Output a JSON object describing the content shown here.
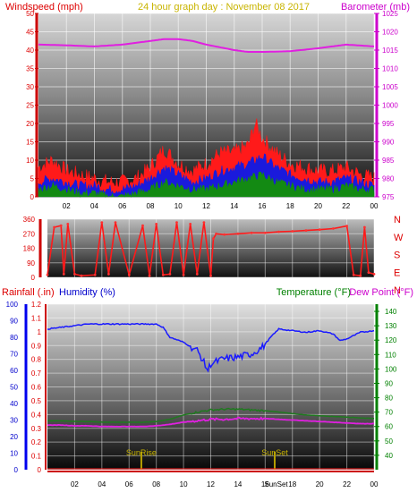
{
  "header": {
    "left": "Windspeed (mph)",
    "center": "24 hour graph day : November 08 2017",
    "right": "Barometer (mb)"
  },
  "colors": {
    "wind": "#ff1a1a",
    "gust": "#ff1a1a",
    "wind_avg": "#1a1adc",
    "wind_low": "#138a13",
    "barometer": "#e020e0",
    "humidity": "#1a1aff",
    "temperature": "#1f7a1f",
    "dewpoint": "#e020e0",
    "rain": "#ff1a1a",
    "sun": "#b6a000",
    "left_axis": "#dd0000",
    "right_axis": "#cc00cc",
    "hum_axis": "#0000cc",
    "temp_axis": "#008000",
    "grid": "#ffffff"
  },
  "chart_data": [
    {
      "type": "area",
      "id": "wind-barometer",
      "title": "24 hour graph day : November 08 2017",
      "ylabel_left": "Windspeed (mph)",
      "ylabel_right": "Barometer (mb)",
      "ylim_left": [
        0,
        50
      ],
      "ylim_right": [
        975,
        1025
      ],
      "yticks_left": [
        "0",
        "5",
        "10",
        "15",
        "20",
        "25",
        "30",
        "35",
        "40",
        "45",
        "50"
      ],
      "yticks_right": [
        "975",
        "980",
        "985",
        "990",
        "995",
        "1000",
        "1005",
        "1010",
        "1015",
        "1020",
        "1025"
      ],
      "xticks": [
        "02",
        "04",
        "06",
        "08",
        "10",
        "12",
        "14",
        "16",
        "18",
        "20",
        "22",
        "00"
      ],
      "xlim_hours": [
        0,
        24
      ],
      "grid": true,
      "series": [
        {
          "name": "",
          "kind": "gust",
          "x": [
            0,
            1,
            2,
            3,
            4,
            5,
            6,
            7,
            8,
            9,
            10,
            11,
            12,
            13,
            14,
            15,
            15.5,
            16,
            17,
            18,
            19,
            20,
            21,
            22,
            23,
            24
          ],
          "y": [
            8,
            10,
            7,
            6,
            5,
            4,
            4,
            5,
            8,
            13,
            9,
            7,
            9,
            12,
            12,
            14,
            20,
            16,
            12,
            9,
            8,
            7,
            7,
            8,
            6,
            5
          ]
        },
        {
          "name": "",
          "kind": "average",
          "x": [
            0,
            1,
            2,
            3,
            4,
            5,
            6,
            7,
            8,
            9,
            10,
            11,
            12,
            13,
            14,
            15,
            16,
            17,
            18,
            19,
            20,
            21,
            22,
            23,
            24
          ],
          "y": [
            4,
            5,
            4,
            3,
            3,
            2,
            2,
            3,
            5,
            8,
            6,
            4,
            5,
            7,
            8,
            9,
            11,
            8,
            6,
            5,
            4,
            4,
            5,
            4,
            3
          ]
        },
        {
          "name": "",
          "kind": "low",
          "x": [
            0,
            1,
            2,
            3,
            4,
            5,
            6,
            7,
            8,
            9,
            10,
            11,
            12,
            13,
            14,
            15,
            16,
            17,
            18,
            19,
            20,
            21,
            22,
            23,
            24
          ],
          "y": [
            2,
            3,
            2,
            1,
            1,
            0,
            0,
            1,
            2,
            4,
            3,
            2,
            2,
            3,
            4,
            5,
            6,
            4,
            3,
            2,
            2,
            2,
            3,
            2,
            2
          ]
        },
        {
          "name": "",
          "kind": "barometer",
          "axis": "right",
          "x": [
            0,
            2,
            4,
            6,
            8,
            9,
            10,
            11,
            12,
            14,
            15,
            16,
            18,
            20,
            22,
            24
          ],
          "y": [
            1016.5,
            1016.3,
            1016,
            1016.5,
            1017.5,
            1018,
            1018,
            1017.5,
            1016.5,
            1015,
            1014.5,
            1014.5,
            1014.7,
            1015.5,
            1016.5,
            1016
          ]
        }
      ]
    },
    {
      "type": "scatter",
      "id": "wind-direction",
      "ylim": [
        0,
        360
      ],
      "yticks": [
        "0",
        "90",
        "180",
        "270",
        "360"
      ],
      "compass_labels": [
        "N",
        "W",
        "S",
        "E",
        "N"
      ],
      "xlim_hours": [
        0,
        24
      ],
      "grid": true,
      "series": [
        {
          "name": "",
          "x": [
            0,
            0.5,
            1.0,
            1.2,
            1.5,
            2.0,
            2.5,
            3.5,
            4.0,
            4.5,
            5.0,
            6.0,
            7.0,
            7.5,
            8.0,
            8.5,
            9.0,
            9.5,
            10.0,
            10.5,
            11.0,
            11.5,
            12.0,
            12.2,
            12.4,
            13,
            14,
            15,
            16,
            17,
            18,
            19,
            20,
            21,
            22,
            22.5,
            23,
            23.3,
            23.6,
            24
          ],
          "y": [
            15,
            310,
            320,
            20,
            330,
            20,
            10,
            15,
            340,
            20,
            340,
            15,
            320,
            10,
            330,
            15,
            20,
            340,
            15,
            330,
            20,
            340,
            10,
            240,
            270,
            265,
            270,
            275,
            275,
            282,
            285,
            290,
            295,
            302,
            318,
            15,
            10,
            310,
            30,
            20
          ]
        }
      ]
    },
    {
      "type": "line",
      "id": "rain-humidity-temp",
      "ylabel_rain": "Rainfall (.in)",
      "ylabel_humidity": "Humidity (%)",
      "ylabel_temp": "Temperature (°F)",
      "ylabel_dew": "Dew Point (°F)",
      "ylim_rain": [
        0,
        1.2
      ],
      "ylim_humidity": [
        0,
        100
      ],
      "ylim_temp": [
        30,
        145
      ],
      "yticks_rain": [
        "0",
        "0.1",
        "0.2",
        "0.3",
        "0.4",
        "0.5",
        "0.6",
        "0.7",
        "0.8",
        "0.9",
        "1",
        "1.1",
        "1.2"
      ],
      "yticks_humidity": [
        "0",
        "10",
        "20",
        "30",
        "40",
        "50",
        "60",
        "70",
        "80",
        "90",
        "100"
      ],
      "yticks_temp": [
        "40",
        "50",
        "60",
        "70",
        "80",
        "90",
        "100",
        "110",
        "120",
        "130",
        "140"
      ],
      "xticks": [
        "02",
        "04",
        "06",
        "08",
        "10",
        "12",
        "14",
        "16",
        "18",
        "20",
        "22",
        "00"
      ],
      "xlim_hours": [
        0,
        24
      ],
      "grid": true,
      "markers": [
        {
          "label": "SunRise",
          "x": 6.9
        },
        {
          "label": "SunSet",
          "x": 16.7
        }
      ],
      "bottom_label": "SunSet",
      "series": [
        {
          "name": "",
          "kind": "humidity",
          "axis": "humidity",
          "x": [
            0,
            1,
            2,
            3,
            4,
            5,
            6,
            7,
            8,
            8.5,
            9,
            10,
            11,
            11.3,
            11.6,
            11.8,
            12,
            13,
            14,
            15,
            15.8,
            16.4,
            17,
            18,
            19,
            20,
            21,
            21.5,
            22,
            23,
            24
          ],
          "y": [
            85,
            86,
            87,
            88,
            88,
            88,
            88,
            88,
            88,
            86,
            80,
            77,
            72,
            68,
            63,
            60,
            64,
            67,
            68,
            70,
            74,
            80,
            85,
            84,
            83,
            84,
            82,
            78,
            79,
            83,
            84
          ]
        },
        {
          "name": "",
          "kind": "temperature",
          "axis": "temp",
          "x": [
            0,
            1,
            2,
            3,
            4,
            5,
            6,
            7,
            8,
            9,
            10,
            11,
            12,
            13,
            14,
            15,
            16,
            17,
            18,
            19,
            20,
            21,
            22,
            23,
            24
          ],
          "y": [
            64,
            64,
            63.5,
            63.5,
            63,
            63,
            63,
            63,
            63.5,
            65,
            68,
            70,
            71.5,
            72,
            72,
            71.5,
            71,
            70,
            69,
            68,
            67.5,
            67,
            66.5,
            66,
            65.5
          ]
        },
        {
          "name": "",
          "kind": "dewpoint",
          "axis": "temp",
          "x": [
            0,
            1,
            2,
            3,
            4,
            5,
            6,
            7,
            8,
            9,
            10,
            11,
            12,
            13,
            14,
            15,
            16,
            17,
            18,
            19,
            20,
            21,
            22,
            23,
            24
          ],
          "y": [
            61,
            61,
            60.5,
            60.5,
            60,
            60,
            60,
            60,
            60.5,
            61.5,
            63,
            64,
            65,
            65,
            65.5,
            65.5,
            65.5,
            65,
            64.5,
            64,
            63.5,
            63,
            62.5,
            62,
            62
          ]
        },
        {
          "name": "",
          "kind": "rain",
          "axis": "rain",
          "x": [
            0,
            24
          ],
          "y": [
            0,
            0
          ]
        }
      ]
    }
  ]
}
